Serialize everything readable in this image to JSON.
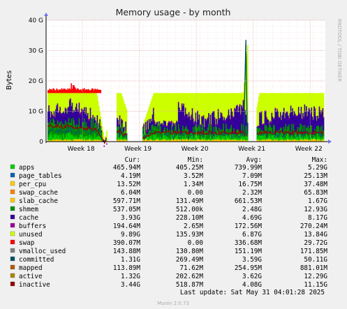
{
  "chart_data": {
    "type": "area",
    "title": "Memory usage - by month",
    "ylabel": "Bytes",
    "side_label": "RRDTOOL / TOBI OETIKER",
    "y_ticks": [
      "0",
      "10 G",
      "20 G",
      "30 G",
      "40 G"
    ],
    "ylim": [
      0,
      40
    ],
    "y_unit": "G",
    "x_ticks": [
      "Week 18",
      "Week 19",
      "Week 20",
      "Week 21",
      "Week 22"
    ],
    "x_range": [
      "Apr 27",
      "May 31"
    ],
    "grid": true,
    "stacked_layers_shown": [
      "apps",
      "page_tables",
      "per_cpu",
      "swap_cache",
      "slab_cache",
      "shmem",
      "cache",
      "buffers",
      "unused",
      "swap"
    ],
    "line_series_shown": [
      "inactive",
      "committed"
    ],
    "approx_series_values_G": {
      "x": [
        "Apr 27",
        "Apr 30",
        "May 3",
        "May 4",
        "May 5",
        "May 6",
        "May 8",
        "May 10",
        "May 13",
        "May 16",
        "May 19",
        "May 20",
        "May 21",
        "May 22",
        "May 23",
        "May 25",
        "May 28",
        "May 31"
      ],
      "unused_top": [
        16,
        16,
        16,
        0,
        16,
        16,
        0,
        16,
        16,
        16,
        16,
        16,
        33.5,
        0,
        16,
        16,
        16,
        16
      ],
      "cache_top": [
        10,
        12,
        8,
        0,
        8,
        6,
        0,
        10,
        11,
        7,
        9,
        10,
        12,
        0,
        8,
        9,
        10,
        9
      ],
      "inactive": [
        5,
        5,
        4,
        0,
        4,
        3,
        0,
        3,
        3,
        3,
        3,
        3,
        3,
        0,
        3,
        3,
        3,
        3
      ]
    }
  },
  "legend": {
    "headers": {
      "cur": "Cur:",
      "min": "Min:",
      "avg": "Avg:",
      "max": "Max:"
    },
    "rows": [
      {
        "name": "apps",
        "color": "#00cc00",
        "cur": "465.94M",
        "min": "405.25M",
        "avg": "739.99M",
        "max": "5.29G"
      },
      {
        "name": "page_tables",
        "color": "#0066b3",
        "cur": "4.19M",
        "min": "3.52M",
        "avg": "7.09M",
        "max": "25.13M"
      },
      {
        "name": "per_cpu",
        "color": "#ffcc00",
        "cur": "13.52M",
        "min": "1.34M",
        "avg": "16.75M",
        "max": "37.48M"
      },
      {
        "name": "swap_cache",
        "color": "#ff8000",
        "cur": "6.04M",
        "min": "0.00",
        "avg": "2.32M",
        "max": "65.83M"
      },
      {
        "name": "slab_cache",
        "color": "#ffcc00",
        "cur": "597.71M",
        "min": "131.49M",
        "avg": "661.53M",
        "max": "1.67G"
      },
      {
        "name": "shmem",
        "color": "#008f00",
        "cur": "537.05M",
        "min": "512.00k",
        "avg": "2.48G",
        "max": "12.93G"
      },
      {
        "name": "cache",
        "color": "#330099",
        "cur": "3.93G",
        "min": "228.10M",
        "avg": "4.69G",
        "max": "8.17G"
      },
      {
        "name": "buffers",
        "color": "#990099",
        "cur": "194.64M",
        "min": "2.65M",
        "avg": "172.56M",
        "max": "270.24M"
      },
      {
        "name": "unused",
        "color": "#ccff00",
        "cur": "9.89G",
        "min": "135.93M",
        "avg": "6.87G",
        "max": "13.84G"
      },
      {
        "name": "swap",
        "color": "#ff0000",
        "cur": "390.07M",
        "min": "0.00",
        "avg": "336.68M",
        "max": "29.72G"
      },
      {
        "name": "vmalloc_used",
        "color": "#808080",
        "cur": "143.88M",
        "min": "130.80M",
        "avg": "151.19M",
        "max": "171.85M"
      },
      {
        "name": "committed",
        "color": "#005366",
        "cur": "1.31G",
        "min": "269.49M",
        "avg": "3.59G",
        "max": "50.11G"
      },
      {
        "name": "mapped",
        "color": "#b35a00",
        "cur": "113.89M",
        "min": "71.62M",
        "avg": "254.95M",
        "max": "881.01M"
      },
      {
        "name": "active",
        "color": "#aa8800",
        "cur": "1.32G",
        "min": "202.62M",
        "avg": "3.62G",
        "max": "12.29G"
      },
      {
        "name": "inactive",
        "color": "#990000",
        "cur": "3.44G",
        "min": "518.87M",
        "avg": "4.08G",
        "max": "11.15G"
      }
    ]
  },
  "last_update": "Last update: Sat May 31 04:01:28 2025",
  "footer": "Munin 2.0.73",
  "colors": {
    "background": "#f0f0f0",
    "plot_bg": "#ffffff",
    "grid_major": "#e8b0b0",
    "unused": "#ccff00",
    "cache": "#330099",
    "swap": "#ff0000",
    "apps": "#00cc00",
    "shmem": "#008f00",
    "committed": "#005366",
    "inactive": "#990000"
  }
}
